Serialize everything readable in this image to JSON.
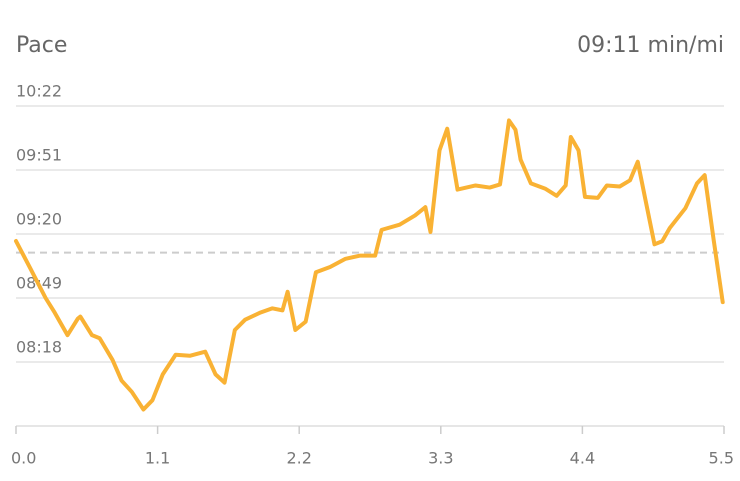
{
  "chart_data": {
    "type": "line",
    "title": "Pace",
    "average": {
      "value": 551,
      "label": "09:11 min/mi"
    },
    "color": "#f9b234",
    "grid": true,
    "xlim": [
      0,
      5.5
    ],
    "xticks": [
      {
        "value": 0,
        "label": "0.0"
      },
      1.1,
      2.2,
      3.3,
      4.4,
      5.5
    ],
    "ylim": [
      467,
      622
    ],
    "yticks": [
      {
        "value": 498,
        "label": "08:18"
      },
      {
        "value": 529,
        "label": "08:49"
      },
      {
        "value": 560,
        "label": "09:20"
      },
      {
        "value": 591,
        "label": "09:51"
      },
      {
        "value": 622,
        "label": "10:22"
      }
    ],
    "x": [
      0,
      0.11,
      0.23,
      0.3,
      0.4,
      0.48,
      0.5,
      0.59,
      0.65,
      0.75,
      0.82,
      0.9,
      0.99,
      1.06,
      1.14,
      1.24,
      1.35,
      1.47,
      1.55,
      1.62,
      1.7,
      1.78,
      1.9,
      1.99,
      2.07,
      2.11,
      2.17,
      2.25,
      2.33,
      2.44,
      2.56,
      2.67,
      2.79,
      2.84,
      2.98,
      3.1,
      3.18,
      3.22,
      3.29,
      3.35,
      3.43,
      3.57,
      3.68,
      3.76,
      3.83,
      3.88,
      3.92,
      4.0,
      4.11,
      4.2,
      4.27,
      4.31,
      4.37,
      4.42,
      4.52,
      4.59,
      4.69,
      4.77,
      4.83,
      4.89,
      4.96,
      5.02,
      5.08,
      5.2,
      5.29,
      5.35,
      5.42,
      5.49
    ],
    "values": [
      556.6,
      543.5,
      529,
      522,
      511,
      519,
      520,
      511,
      509.5,
      499,
      489,
      483.5,
      475,
      479.5,
      492,
      501.5,
      501,
      503,
      492,
      488,
      513.5,
      518.5,
      522,
      524,
      523,
      532,
      513.5,
      517.5,
      541.5,
      544,
      548,
      549.5,
      549.5,
      562,
      564.5,
      569,
      573,
      561,
      600.5,
      611,
      581.5,
      583.5,
      582.5,
      584,
      615,
      610.5,
      596,
      584.5,
      582,
      578.5,
      583.5,
      607,
      600.5,
      578,
      577.5,
      583.5,
      583,
      586,
      595,
      576.5,
      555,
      556.5,
      563,
      572.5,
      584.5,
      588.5,
      557,
      527
    ]
  }
}
